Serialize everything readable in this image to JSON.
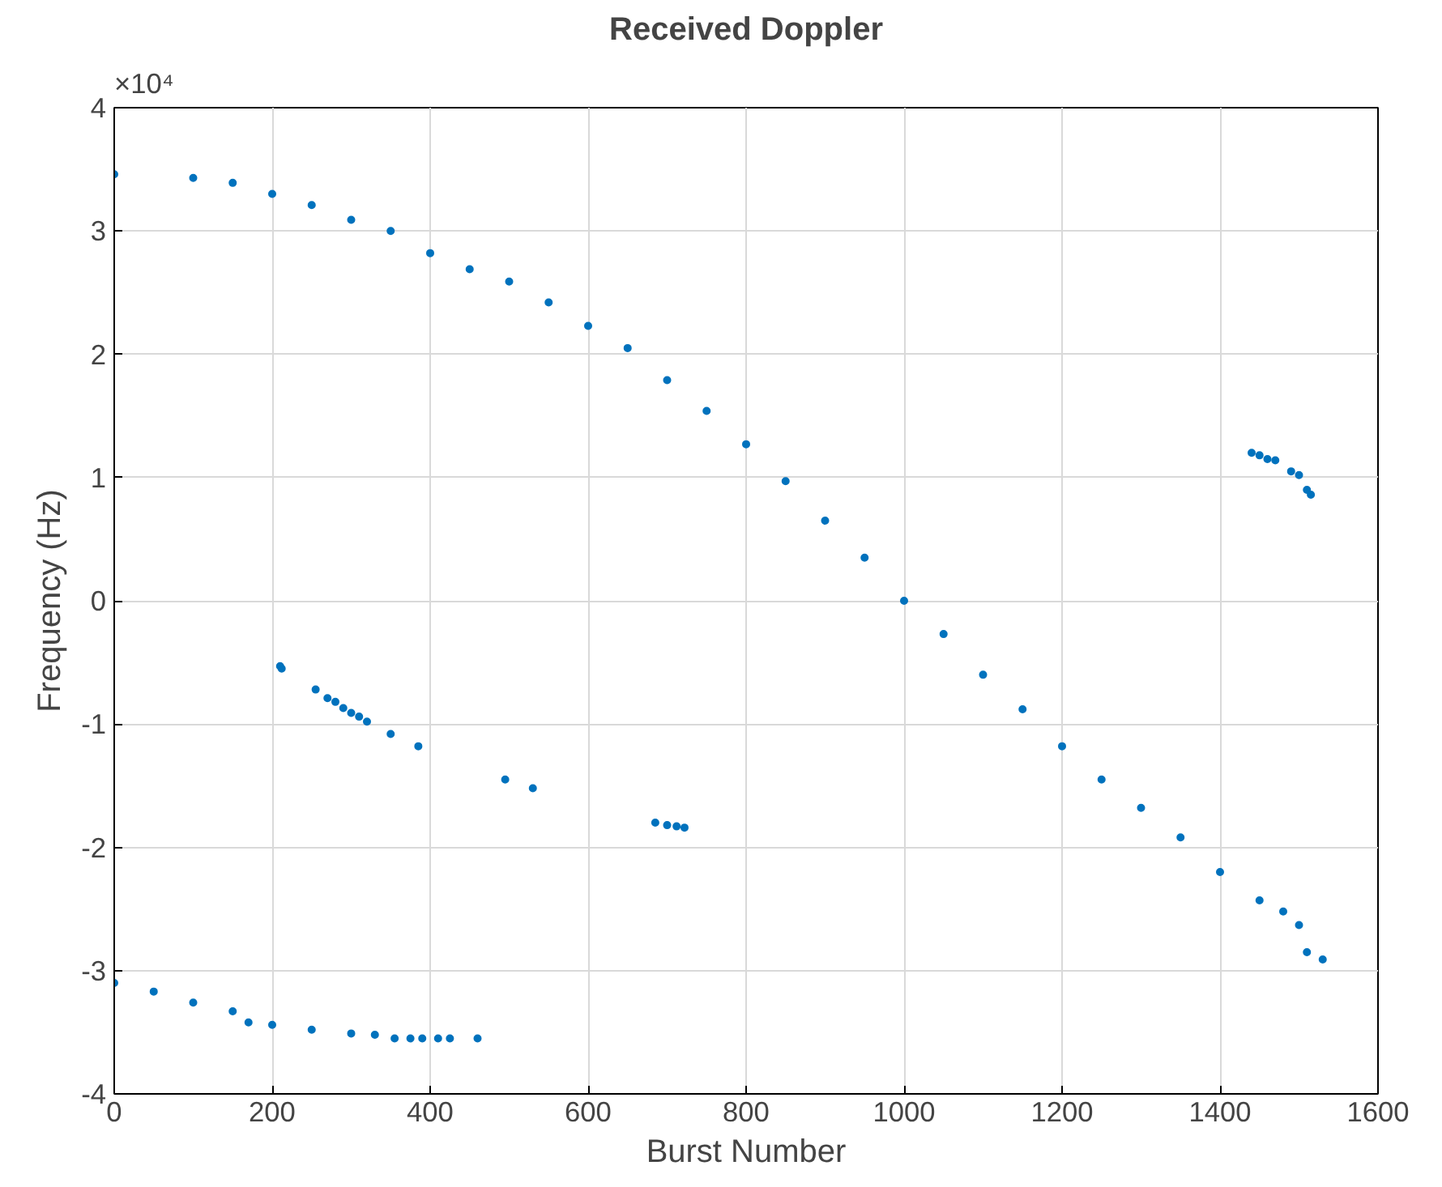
{
  "chart_data": {
    "type": "scatter",
    "title": "Received Doppler",
    "xlabel": "Burst Number",
    "ylabel": "Frequency (Hz)",
    "annotations": [
      "×10⁴"
    ],
    "xlim": [
      0,
      1600
    ],
    "ylim": [
      -4,
      4
    ],
    "xticks": [
      0,
      200,
      400,
      600,
      800,
      1000,
      1200,
      1400,
      1600
    ],
    "yticks": [
      -4,
      -3,
      -2,
      -1,
      0,
      1,
      2,
      3,
      4
    ],
    "grid": true,
    "marker": "circle",
    "series": [
      {
        "color": "#0072bd",
        "x": [
          0,
          100,
          150,
          200,
          250,
          300,
          350,
          400,
          450,
          500,
          550,
          600,
          650,
          700,
          750,
          800,
          850,
          900,
          950,
          1000,
          1050,
          1100,
          1150,
          1200,
          1250,
          1300,
          1350,
          1400,
          1450,
          1480,
          1500,
          1510,
          1530,
          0,
          50,
          100,
          150,
          170,
          200,
          250,
          300,
          330,
          355,
          375,
          390,
          410,
          425,
          460,
          210,
          212,
          255,
          270,
          280,
          290,
          300,
          310,
          320,
          350,
          385,
          495,
          530,
          685,
          700,
          712,
          722,
          1440,
          1450,
          1460,
          1470,
          1490,
          1500,
          1510,
          1515
        ],
        "values": [
          3.46,
          3.43,
          3.39,
          3.3,
          3.21,
          3.09,
          3.0,
          2.82,
          2.69,
          2.59,
          2.42,
          2.23,
          2.05,
          1.79,
          1.54,
          1.27,
          0.97,
          0.65,
          0.35,
          0,
          -0.27,
          -0.6,
          -0.88,
          -1.18,
          -1.45,
          -1.68,
          -1.92,
          -2.2,
          -2.43,
          -2.52,
          -2.63,
          -2.85,
          -2.91,
          -3.1,
          -3.17,
          -3.26,
          -3.33,
          -3.42,
          -3.44,
          -3.48,
          -3.51,
          -3.52,
          -3.55,
          -3.55,
          -3.55,
          -3.55,
          -3.55,
          -3.55,
          -0.53,
          -0.55,
          -0.72,
          -0.79,
          -0.82,
          -0.87,
          -0.91,
          -0.94,
          -0.98,
          -1.08,
          -1.18,
          -1.45,
          -1.52,
          -1.8,
          -1.82,
          -1.83,
          -1.84,
          1.2,
          1.18,
          1.15,
          1.14,
          1.05,
          1.02,
          0.9,
          0.86
        ]
      }
    ]
  }
}
